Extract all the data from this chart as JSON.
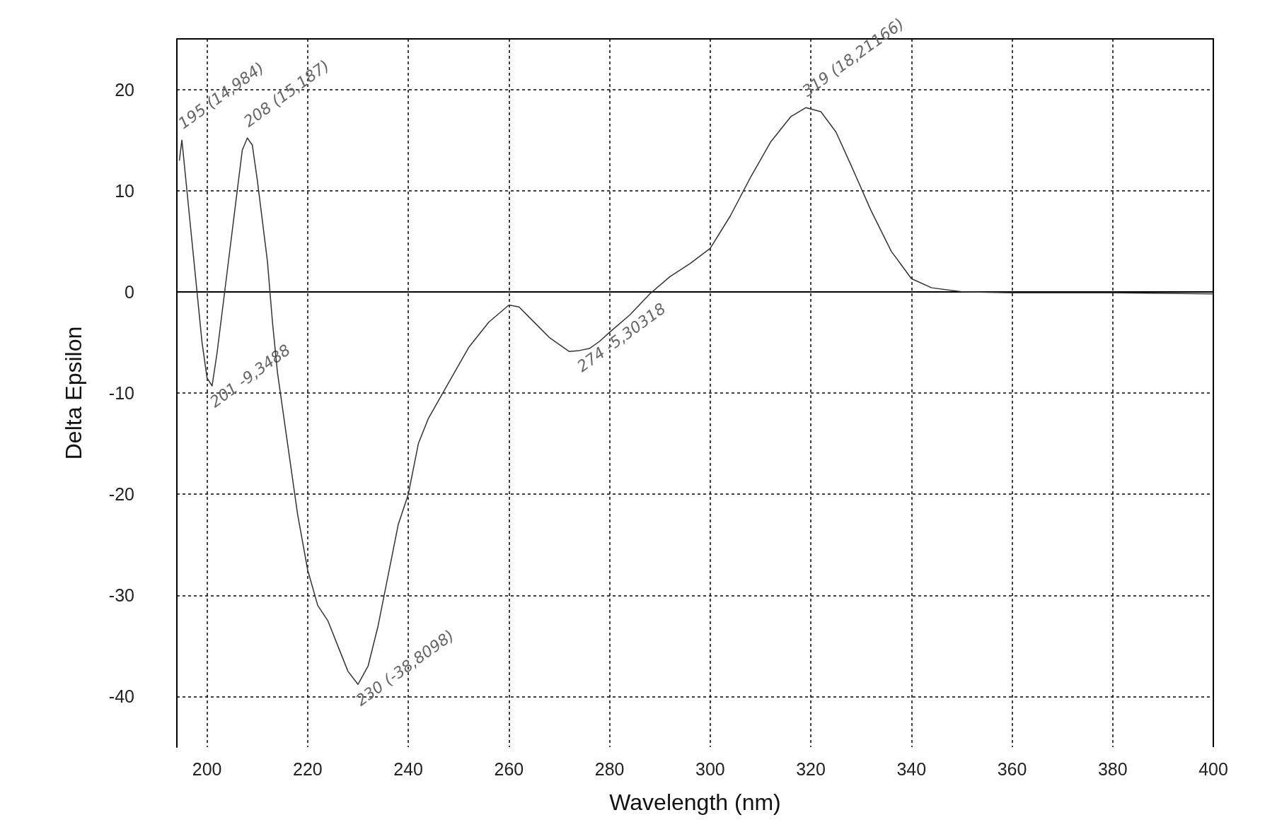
{
  "chart_data": {
    "type": "line",
    "xlabel": "Wavelength (nm)",
    "ylabel": "Delta Epsilon",
    "color": "#333333",
    "xlim": [
      194,
      400
    ],
    "ylim": [
      -45,
      25
    ],
    "xticks": [
      200,
      220,
      240,
      260,
      280,
      300,
      320,
      340,
      360,
      380,
      400
    ],
    "yticks": [
      -40,
      -30,
      -20,
      -10,
      0,
      10,
      20
    ],
    "grid": true,
    "marker": "none",
    "line_style": "solid",
    "x": [
      194.5,
      195,
      196,
      198,
      199,
      200,
      201,
      202,
      204,
      206,
      207,
      208,
      209,
      210,
      212,
      213,
      214,
      216,
      218,
      220,
      222,
      224,
      226,
      228,
      230,
      232,
      234,
      236,
      238,
      240,
      242,
      244,
      248,
      252,
      256,
      260,
      262,
      264,
      268,
      272,
      274,
      276,
      278,
      280,
      284,
      288,
      292,
      296,
      300,
      304,
      308,
      312,
      316,
      319,
      322,
      325,
      328,
      332,
      336,
      340,
      344,
      350,
      360,
      380,
      400
    ],
    "values": [
      13,
      15,
      10,
      0,
      -5,
      -8.5,
      -9.3,
      -6,
      2,
      10,
      14,
      15.2,
      14.5,
      11,
      3,
      -3,
      -8,
      -15,
      -22,
      -27.5,
      -31,
      -32.5,
      -35,
      -37.5,
      -38.8,
      -37,
      -33,
      -28,
      -23,
      -20,
      -15,
      -12.5,
      -9,
      -5.5,
      -3,
      -1.3,
      -1.5,
      -2.5,
      -4.5,
      -5.9,
      -5.8,
      -5.6,
      -4.9,
      -4,
      -2.3,
      -0.2,
      1.5,
      2.8,
      4.3,
      7.5,
      11.3,
      14.8,
      17.3,
      18.2,
      17.8,
      15.8,
      12.5,
      8,
      4,
      1.3,
      0.4,
      0,
      -0.1,
      -0.1,
      -0.2
    ],
    "annotations": [
      {
        "text": "195 (14,984)",
        "x": 195,
        "y": 15
      },
      {
        "text": "208 (15,187)",
        "x": 208,
        "y": 15.2
      },
      {
        "text": "201 -9,3488",
        "x": 201,
        "y": -9.3
      },
      {
        "text": "230 (-38,8098)",
        "x": 230,
        "y": -38.8
      },
      {
        "text": "274 -5,30318",
        "x": 274,
        "y": -5.8
      },
      {
        "text": "319 (18,21166)",
        "x": 319,
        "y": 18.2
      }
    ]
  }
}
